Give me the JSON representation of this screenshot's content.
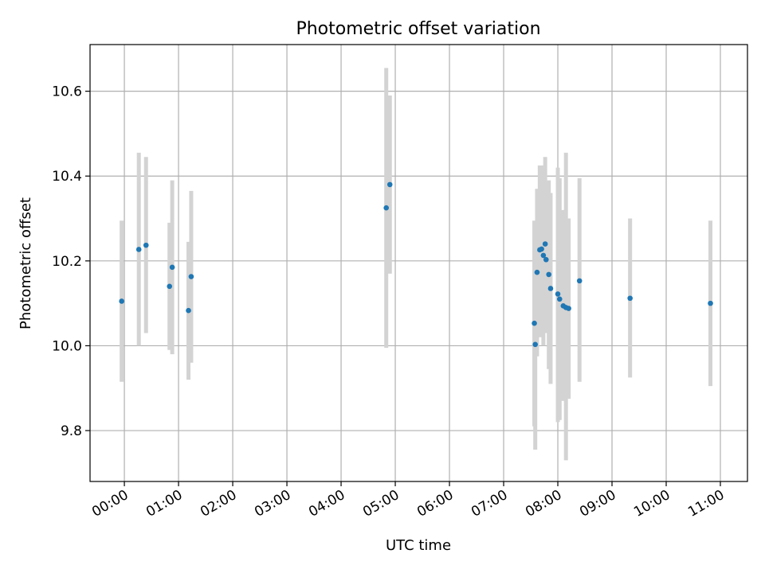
{
  "colors": {
    "point": "#1f77b4",
    "errorbar": "#d3d3d3",
    "grid": "#b0b0b0",
    "axes": "#000000"
  },
  "chart_data": {
    "type": "scatter",
    "title": "Photometric offset variation",
    "xlabel": "UTC time",
    "ylabel": "Photometric offset",
    "grid": true,
    "x_unit": "UTC time (HH:MM)",
    "xlim": [
      "23:22",
      "11:30"
    ],
    "ylim": [
      9.68,
      10.71
    ],
    "x_ticks": [
      "00:00",
      "01:00",
      "02:00",
      "03:00",
      "04:00",
      "05:00",
      "06:00",
      "07:00",
      "08:00",
      "09:00",
      "10:00",
      "11:00"
    ],
    "y_ticks": [
      9.8,
      10.0,
      10.2,
      10.4,
      10.6
    ],
    "y_tick_labels": [
      "9.8",
      "10.0",
      "10.2",
      "10.4",
      "10.6"
    ],
    "series": [
      {
        "marker": "point",
        "errorbars": "vertical",
        "points": [
          {
            "x": "23:57",
            "y": 10.105,
            "lo": 9.915,
            "hi": 10.295
          },
          {
            "x": "00:16",
            "y": 10.227,
            "lo": 10.0,
            "hi": 10.455
          },
          {
            "x": "00:24",
            "y": 10.237,
            "lo": 10.03,
            "hi": 10.445
          },
          {
            "x": "00:50",
            "y": 10.14,
            "lo": 9.99,
            "hi": 10.29
          },
          {
            "x": "00:53",
            "y": 10.185,
            "lo": 9.98,
            "hi": 10.39
          },
          {
            "x": "01:11",
            "y": 10.083,
            "lo": 9.92,
            "hi": 10.245
          },
          {
            "x": "01:14",
            "y": 10.163,
            "lo": 9.96,
            "hi": 10.365
          },
          {
            "x": "04:50",
            "y": 10.325,
            "lo": 9.995,
            "hi": 10.655
          },
          {
            "x": "04:54",
            "y": 10.38,
            "lo": 10.17,
            "hi": 10.59
          },
          {
            "x": "07:34",
            "y": 10.053,
            "lo": 9.81,
            "hi": 10.295
          },
          {
            "x": "07:35",
            "y": 10.003,
            "lo": 9.755,
            "hi": 10.25
          },
          {
            "x": "07:37",
            "y": 10.173,
            "lo": 9.975,
            "hi": 10.37
          },
          {
            "x": "07:40",
            "y": 10.226,
            "lo": 10.02,
            "hi": 10.425
          },
          {
            "x": "07:42",
            "y": 10.228,
            "lo": 10.055,
            "hi": 10.4
          },
          {
            "x": "07:44",
            "y": 10.213,
            "lo": 10.0,
            "hi": 10.425
          },
          {
            "x": "07:46",
            "y": 10.24,
            "lo": 10.03,
            "hi": 10.445
          },
          {
            "x": "07:47",
            "y": 10.203,
            "lo": 10.04,
            "hi": 10.365
          },
          {
            "x": "07:50",
            "y": 10.168,
            "lo": 9.945,
            "hi": 10.39
          },
          {
            "x": "07:52",
            "y": 10.135,
            "lo": 9.91,
            "hi": 10.36
          },
          {
            "x": "08:00",
            "y": 10.122,
            "lo": 9.82,
            "hi": 10.42
          },
          {
            "x": "08:02",
            "y": 10.11,
            "lo": 9.825,
            "hi": 10.395
          },
          {
            "x": "08:06",
            "y": 10.094,
            "lo": 9.87,
            "hi": 10.32
          },
          {
            "x": "08:09",
            "y": 10.09,
            "lo": 9.73,
            "hi": 10.455
          },
          {
            "x": "08:12",
            "y": 10.088,
            "lo": 9.875,
            "hi": 10.3
          },
          {
            "x": "08:24",
            "y": 10.153,
            "lo": 9.915,
            "hi": 10.395
          },
          {
            "x": "09:20",
            "y": 10.112,
            "lo": 9.925,
            "hi": 10.3
          },
          {
            "x": "10:49",
            "y": 10.1,
            "lo": 9.905,
            "hi": 10.295
          }
        ]
      }
    ]
  }
}
